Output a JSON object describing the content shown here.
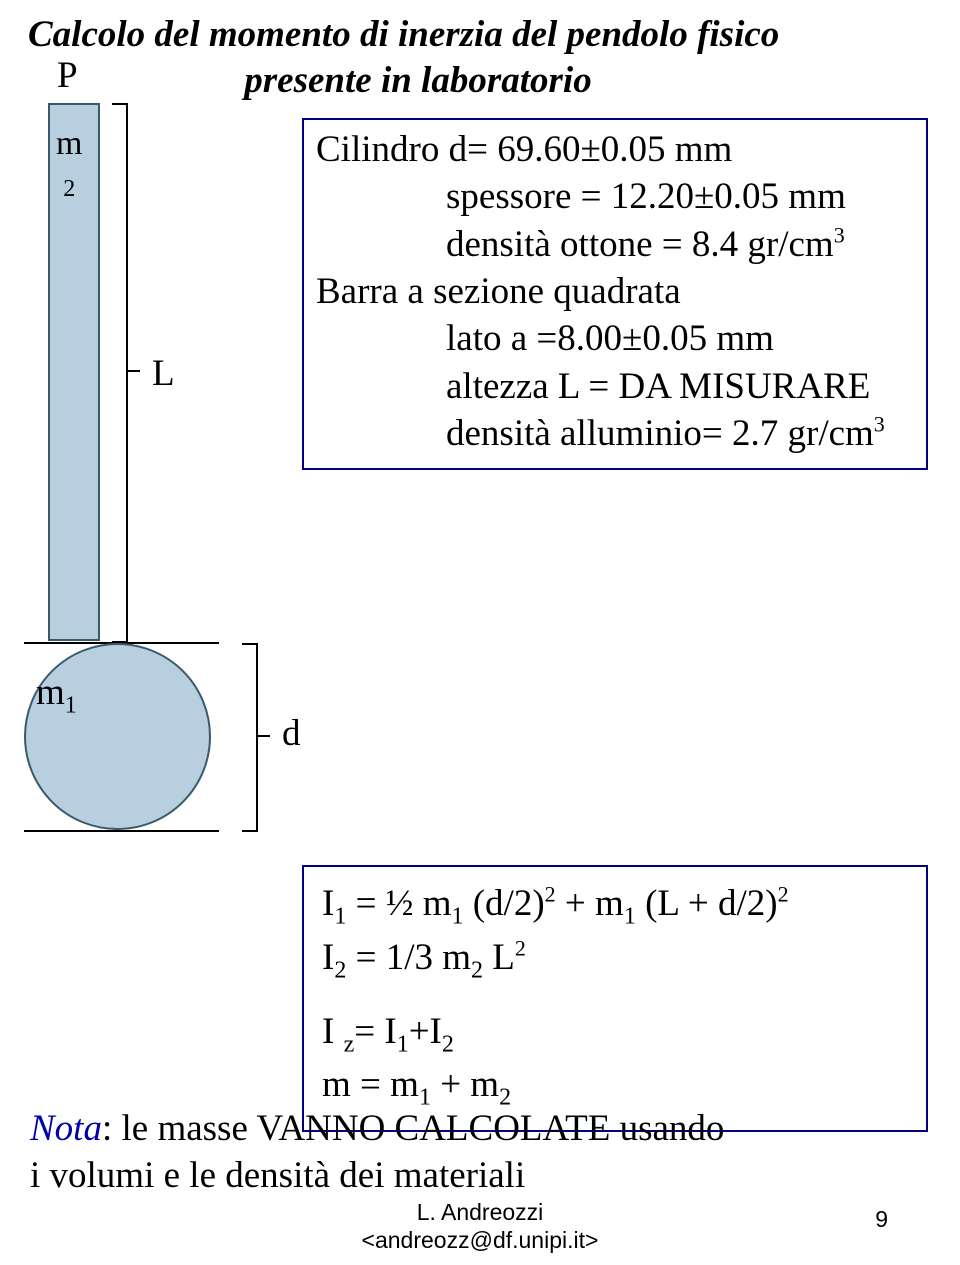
{
  "title": {
    "line1": "Calcolo del momento di inerzia del pendolo fisico",
    "line2": "presente in laboratorio"
  },
  "diagram": {
    "pivot_label": "P",
    "bar_mass_label": "m",
    "bar_mass_sub": "2",
    "L_label": "L",
    "sphere_mass_label": "m",
    "sphere_mass_sub": "1",
    "d_label": "d",
    "colors": {
      "fill": "#b7cfde",
      "stroke": "#39596c",
      "box_border": "#000080"
    }
  },
  "info": {
    "l1": "Cilindro  d= 69.60±0.05 mm",
    "l2": "spessore = 12.20±0.05 mm",
    "l3_a": "densità ottone = 8.4 gr/cm",
    "l3_sup": "3",
    "l4": "Barra a sezione quadrata",
    "l5": "lato a =8.00±0.05 mm",
    "l6": "altezza L = DA MISURARE",
    "l7_a": "densità alluminio= 2.7 gr/cm",
    "l7_sup": "3"
  },
  "formulas": {
    "I1_a": "I",
    "I1_sub1": "1",
    "I1_b": " = ½ m",
    "I1_sub2": "1",
    "I1_c": " (d/2)",
    "I1_sup1": "2",
    "I1_d": " + m",
    "I1_sub3": "1",
    "I1_e": " (L + d/2)",
    "I1_sup2": "2",
    "I2_a": "I",
    "I2_sub1": "2",
    "I2_b": " = 1/3 m",
    "I2_sub2": "2",
    "I2_c": " L",
    "I2_sup1": "2",
    "Iz_a": "I ",
    "Iz_sub1": "z",
    "Iz_b": "= I",
    "Iz_sub2": "1",
    "Iz_c": "+I",
    "Iz_sub3": "2",
    "m_a": "m = m",
    "m_sub1": "1",
    "m_b": " + m",
    "m_sub2": "2"
  },
  "note": {
    "nota": "Nota",
    "rest1": ": le masse VANNO CALCOLATE usando",
    "rest2": "i volumi e le densità dei materiali"
  },
  "footer": {
    "author": "L. Andreozzi",
    "email": "<andreozz@df.unipi.it>",
    "page": "9"
  }
}
